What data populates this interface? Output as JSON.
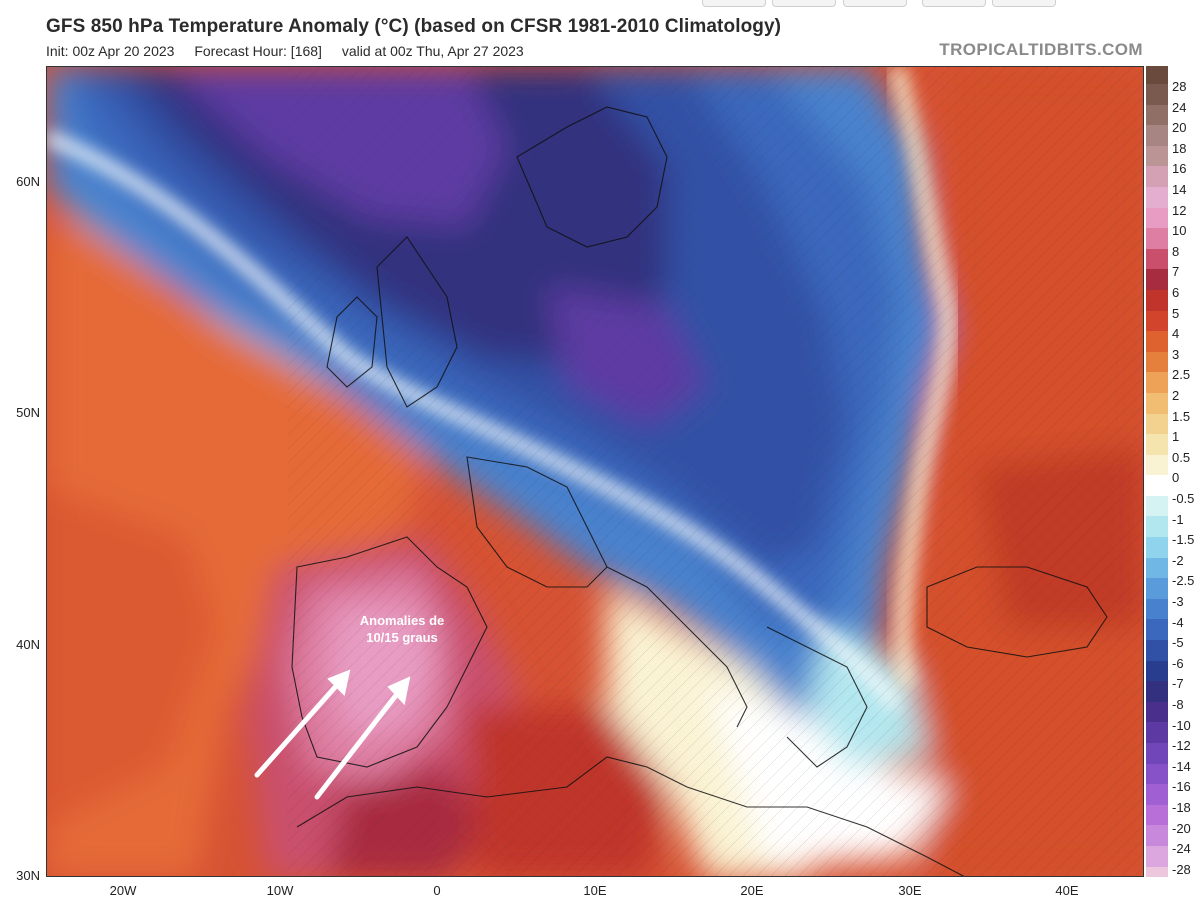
{
  "header": {
    "title": "GFS 850 hPa Temperature Anomaly (°C) (based on CFSR 1981-2010 Climatology)",
    "init": "Init: 00z Apr 20 2023",
    "forecast": "Forecast Hour: [168]",
    "valid": "valid at 00z Thu, Apr 27 2023",
    "brand": "TROPICALTIDBITS.COM"
  },
  "map": {
    "lat_labels": [
      "60N",
      "50N",
      "40N",
      "30N"
    ],
    "lon_labels": [
      "20W",
      "10W",
      "0",
      "10E",
      "20E",
      "30E",
      "40E"
    ],
    "annotation_line1": "Anomalies de",
    "annotation_line2": "10/15 graus",
    "arrow_icon": "arrow-icon"
  },
  "colorbar": {
    "labels": [
      "28",
      "24",
      "20",
      "18",
      "16",
      "14",
      "12",
      "10",
      "8",
      "7",
      "6",
      "5",
      "4",
      "3",
      "2.5",
      "2",
      "1.5",
      "1",
      "0.5",
      "0",
      "-0.5",
      "-1",
      "-1.5",
      "-2",
      "-2.5",
      "-3",
      "-4",
      "-5",
      "-6",
      "-7",
      "-8",
      "-10",
      "-12",
      "-14",
      "-16",
      "-18",
      "-20",
      "-24",
      "-28"
    ],
    "colors": [
      "#7a5a4e",
      "#8f6f66",
      "#a78582",
      "#bb9596",
      "#d4a0b4",
      "#e3aed0",
      "#e89cc3",
      "#de7ea2",
      "#c94f6d",
      "#a82c3f",
      "#c0342c",
      "#d2452c",
      "#dd622f",
      "#e57f3c",
      "#eea258",
      "#f0bd72",
      "#f3d290",
      "#f6e4ae",
      "#faf3d3",
      "#ffffff",
      "#d6f3f4",
      "#b3e7ef",
      "#8fd3ec",
      "#70b7e6",
      "#5a9cdb",
      "#4882ce",
      "#3b68bc",
      "#3151a6",
      "#293d8f",
      "#32307f",
      "#4a2f8c",
      "#5d3aa3",
      "#7046b8",
      "#8752c7",
      "#a05fd3",
      "#b870d8",
      "#c888dc",
      "#dba7de",
      "#ecc7de"
    ]
  }
}
